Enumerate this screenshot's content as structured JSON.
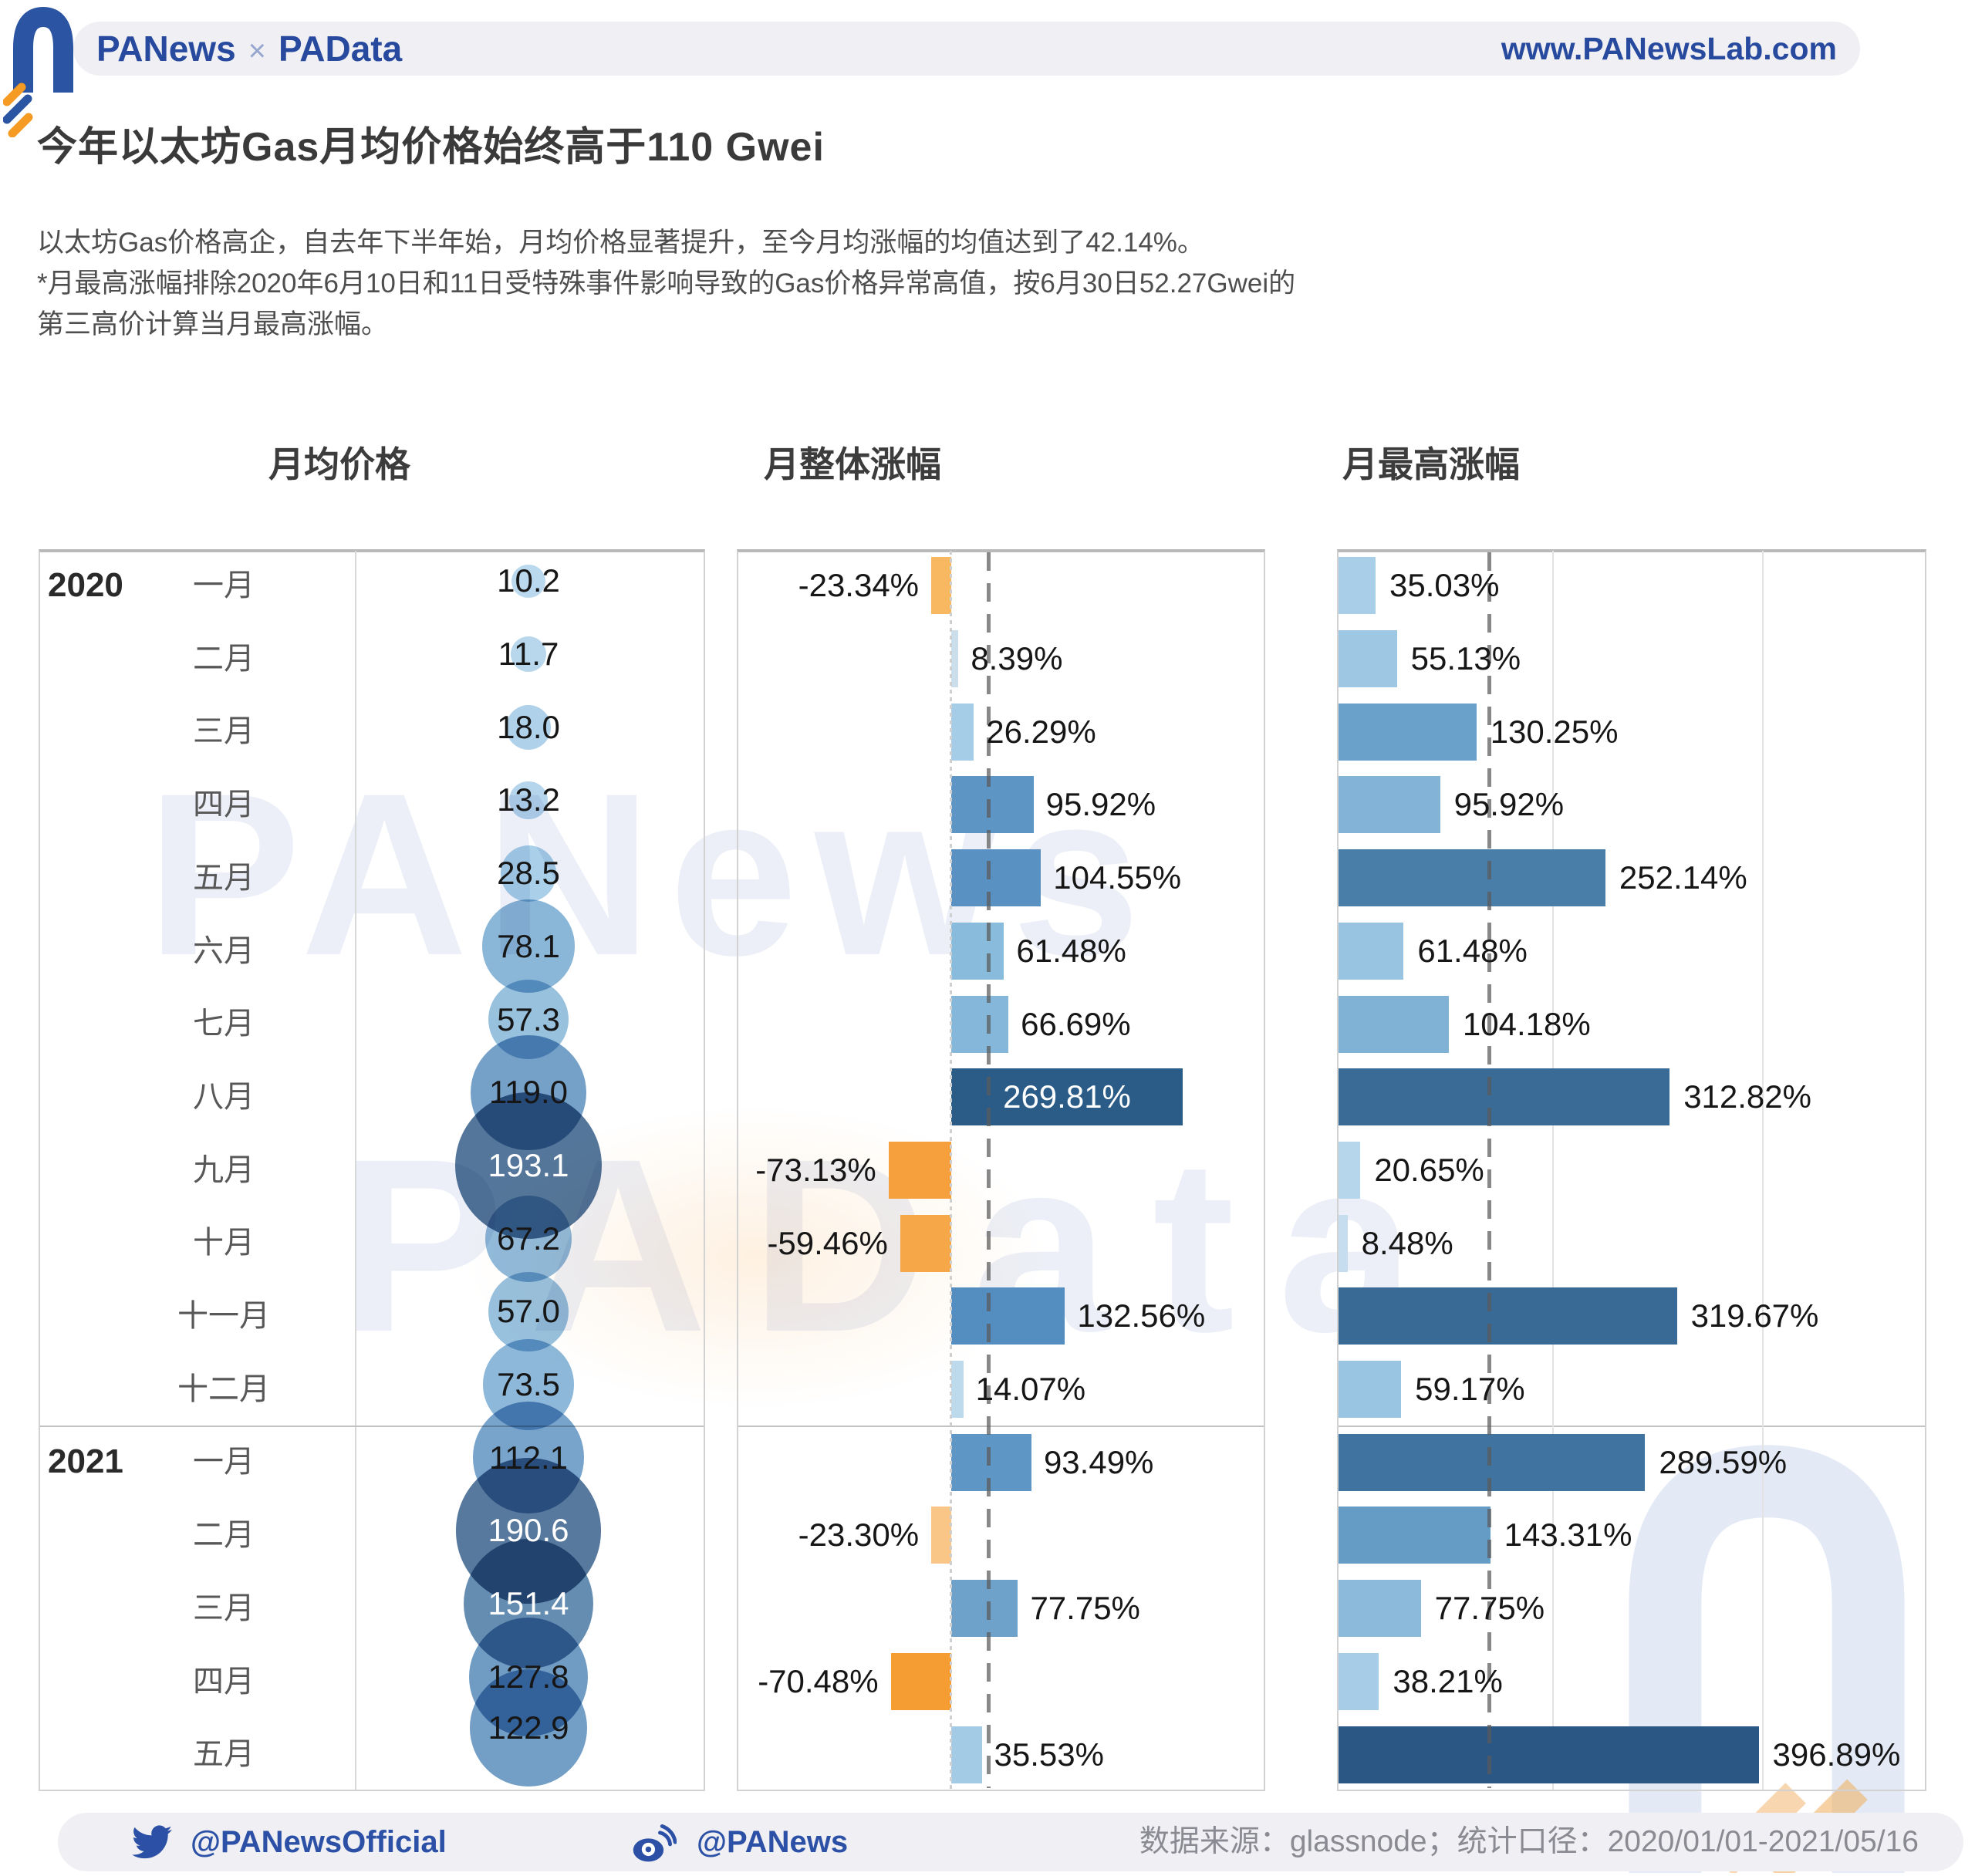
{
  "header": {
    "brand_left": "PANews",
    "brand_sep": "×",
    "brand_right": "PAData",
    "url": "www.PANewsLab.com"
  },
  "title": "今年以太坊Gas月均价格始终高于110 Gwei",
  "description_lines": [
    "以太坊Gas价格高企，自去年下半年始，月均价格显著提升，至今月均涨幅的均值达到了42.14%。",
    "*月最高涨幅排除2020年6月10日和11日受特殊事件影响导致的Gas价格异常高值，按6月30日52.27Gwei的",
    "第三高价计算当月最高涨幅。"
  ],
  "column_headers": {
    "avg_price": "月均价格",
    "overall_change": "月整体涨幅",
    "max_change": "月最高涨幅"
  },
  "watermarks": {
    "wm1": "PANews",
    "wm2": "PAData"
  },
  "footer": {
    "twitter_handle": "@PANewsOfficial",
    "weibo_handle": "@PANews",
    "source_note": "数据来源：glassnode；统计口径：2020/01/01-2021/05/16"
  },
  "rows": [
    {
      "year": "2020",
      "month": "一月",
      "price": 10.2,
      "price_label": "10.2",
      "bubble_color": "#b7d7ee",
      "bubble_text_color": "#161616",
      "overall": {
        "value": -23.34,
        "label": "-23.34%",
        "color": "#f8b862",
        "label_inside": false
      },
      "max": {
        "value": 35.03,
        "label": "35.03%",
        "color": "#a8cee8"
      }
    },
    {
      "year": null,
      "month": "二月",
      "price": 11.7,
      "price_label": "11.7",
      "bubble_color": "#b4d5ec",
      "bubble_text_color": "#161616",
      "overall": {
        "value": 8.39,
        "label": "8.39%",
        "color": "#cbdeeb",
        "label_inside": false
      },
      "max": {
        "value": 55.13,
        "label": "55.13%",
        "color": "#9dc7e3"
      }
    },
    {
      "year": null,
      "month": "三月",
      "price": 18.0,
      "price_label": "18.0",
      "bubble_color": "#accfe9",
      "bubble_text_color": "#161616",
      "overall": {
        "value": 26.29,
        "label": "26.29%",
        "color": "#a6cde7",
        "label_inside": false
      },
      "max": {
        "value": 130.25,
        "label": "130.25%",
        "color": "#6aa1cb"
      }
    },
    {
      "year": null,
      "month": "四月",
      "price": 13.2,
      "price_label": "13.2",
      "bubble_color": "#b1d3eb",
      "bubble_text_color": "#161616",
      "overall": {
        "value": 95.92,
        "label": "95.92%",
        "color": "#5d95c4",
        "label_inside": false
      },
      "max": {
        "value": 95.92,
        "label": "95.92%",
        "color": "#83b4d8"
      }
    },
    {
      "year": null,
      "month": "五月",
      "price": 28.5,
      "price_label": "28.5",
      "bubble_color": "#a5cde8",
      "bubble_text_color": "#161616",
      "overall": {
        "value": 104.55,
        "label": "104.55%",
        "color": "#5891c2",
        "label_inside": false
      },
      "max": {
        "value": 252.14,
        "label": "252.14%",
        "color": "#497ea9"
      }
    },
    {
      "year": null,
      "month": "六月",
      "price": 78.1,
      "price_label": "78.1",
      "bubble_color": "#84b2d5",
      "bubble_text_color": "#161616",
      "overall": {
        "value": 61.48,
        "label": "61.48%",
        "color": "#89bbdc",
        "label_inside": false
      },
      "max": {
        "value": 61.48,
        "label": "61.48%",
        "color": "#98c3e1"
      }
    },
    {
      "year": null,
      "month": "七月",
      "price": 57.3,
      "price_label": "57.3",
      "bubble_color": "#92bedd",
      "bubble_text_color": "#161616",
      "overall": {
        "value": 66.69,
        "label": "66.69%",
        "color": "#84b7d9",
        "label_inside": false
      },
      "max": {
        "value": 104.18,
        "label": "104.18%",
        "color": "#80b2d6"
      }
    },
    {
      "year": null,
      "month": "八月",
      "price": 119.0,
      "price_label": "119.0",
      "bubble_color": "#6d9cc6",
      "bubble_text_color": "#161616",
      "overall": {
        "value": 269.81,
        "label": "269.81%",
        "color": "#2b5c88",
        "label_inside": true
      },
      "max": {
        "value": 312.82,
        "label": "312.82%",
        "color": "#3a6b97"
      }
    },
    {
      "year": null,
      "month": "九月",
      "price": 193.1,
      "price_label": "193.1",
      "bubble_color": "#4b6f95",
      "bubble_text_color": "#ffffff",
      "overall": {
        "value": -73.13,
        "label": "-73.13%",
        "color": "#f5a03c",
        "label_inside": false
      },
      "max": {
        "value": 20.65,
        "label": "20.65%",
        "color": "#b6d6ec"
      }
    },
    {
      "year": null,
      "month": "十月",
      "price": 67.2,
      "price_label": "67.2",
      "bubble_color": "#8bb7d9",
      "bubble_text_color": "#161616",
      "overall": {
        "value": -59.46,
        "label": "-59.46%",
        "color": "#f6a748",
        "label_inside": false
      },
      "max": {
        "value": 8.48,
        "label": "8.48%",
        "color": "#c5ddee"
      }
    },
    {
      "year": null,
      "month": "十一月",
      "price": 57.0,
      "price_label": "57.0",
      "bubble_color": "#92bedd",
      "bubble_text_color": "#161616",
      "overall": {
        "value": 132.56,
        "label": "132.56%",
        "color": "#548ec0",
        "label_inside": false
      },
      "max": {
        "value": 319.67,
        "label": "319.67%",
        "color": "#396a96"
      }
    },
    {
      "year": null,
      "month": "十二月",
      "price": 73.5,
      "price_label": "73.5",
      "bubble_color": "#87b4d7",
      "bubble_text_color": "#161616",
      "overall": {
        "value": 14.07,
        "label": "14.07%",
        "color": "#bdd9ec",
        "label_inside": false
      },
      "max": {
        "value": 59.17,
        "label": "59.17%",
        "color": "#9ac5e2"
      }
    },
    {
      "year": "2021",
      "month": "一月",
      "price": 112.1,
      "price_label": "112.1",
      "bubble_color": "#719fc9",
      "bubble_text_color": "#161616",
      "overall": {
        "value": 93.49,
        "label": "93.49%",
        "color": "#5e96c5",
        "label_inside": false
      },
      "max": {
        "value": 289.59,
        "label": "289.59%",
        "color": "#40739f"
      }
    },
    {
      "year": null,
      "month": "二月",
      "price": 190.6,
      "price_label": "190.6",
      "bubble_color": "#4d7298",
      "bubble_text_color": "#ffffff",
      "overall": {
        "value": -23.3,
        "label": "-23.30%",
        "color": "#fac687",
        "label_inside": false
      },
      "max": {
        "value": 143.31,
        "label": "143.31%",
        "color": "#659cc6"
      }
    },
    {
      "year": null,
      "month": "三月",
      "price": 151.4,
      "price_label": "151.4",
      "bubble_color": "#5d87ae",
      "bubble_text_color": "#ffffff",
      "overall": {
        "value": 77.75,
        "label": "77.75%",
        "color": "#6ea2cb",
        "label_inside": false
      },
      "max": {
        "value": 77.75,
        "label": "77.75%",
        "color": "#8bbadb"
      }
    },
    {
      "year": null,
      "month": "四月",
      "price": 127.8,
      "price_label": "127.8",
      "bubble_color": "#6897c1",
      "bubble_text_color": "#161616",
      "overall": {
        "value": -70.48,
        "label": "-70.48%",
        "color": "#f59c33",
        "label_inside": false
      },
      "max": {
        "value": 38.21,
        "label": "38.21%",
        "color": "#a6cce7"
      }
    },
    {
      "year": null,
      "month": "五月",
      "price": 122.9,
      "price_label": "122.9",
      "bubble_color": "#6b9ac4",
      "bubble_text_color": "#161616",
      "overall": {
        "value": 35.53,
        "label": "35.53%",
        "color": "#a3cbe6",
        "label_inside": false
      },
      "max": {
        "value": 396.89,
        "label": "396.89%",
        "color": "#2a5783"
      }
    }
  ],
  "chart_data": {
    "type": "bar",
    "orientation": "horizontal",
    "title": "今年以太坊Gas月均价格始终高于110 Gwei",
    "subtitle": "以太坊Gas价格高企，自去年下半年始，月均价格显著提升，至今月均涨幅的均值达到了42.14%。",
    "footnote": "*月最高涨幅排除2020年6月10日和11日受特殊事件影响导致的Gas价格异常高值，按6月30日52.27Gwei的第三高价计算当月最高涨幅。",
    "categories": [
      "2020一月",
      "2020二月",
      "2020三月",
      "2020四月",
      "2020五月",
      "2020六月",
      "2020七月",
      "2020八月",
      "2020九月",
      "2020十月",
      "2020十一月",
      "2020十二月",
      "2021一月",
      "2021二月",
      "2021三月",
      "2021四月",
      "2021五月"
    ],
    "series": [
      {
        "name": "月均价格 (Gwei)",
        "type": "bubble",
        "values": [
          10.2,
          11.7,
          18.0,
          13.2,
          28.5,
          78.1,
          57.3,
          119.0,
          193.1,
          67.2,
          57.0,
          73.5,
          112.1,
          190.6,
          151.4,
          127.8,
          122.9
        ]
      },
      {
        "name": "月整体涨幅 (%)",
        "type": "bar",
        "values": [
          -23.34,
          8.39,
          26.29,
          95.92,
          104.55,
          61.48,
          66.69,
          269.81,
          -73.13,
          -59.46,
          132.56,
          14.07,
          93.49,
          -23.3,
          77.75,
          -70.48,
          35.53
        ],
        "mean_line": 42.14
      },
      {
        "name": "月最高涨幅 (%)",
        "type": "bar",
        "values": [
          35.03,
          55.13,
          130.25,
          95.92,
          252.14,
          61.48,
          104.18,
          312.82,
          20.65,
          8.48,
          319.67,
          59.17,
          289.59,
          143.31,
          77.75,
          38.21,
          396.89
        ],
        "mean_line": 141.2,
        "gridlines": [
          200,
          400
        ]
      }
    ],
    "legend_position": "none",
    "grid": "partial",
    "positive_color_range": [
      "#c5ddee",
      "#2a5783"
    ],
    "negative_color_range": [
      "#fac687",
      "#f59c33"
    ]
  }
}
